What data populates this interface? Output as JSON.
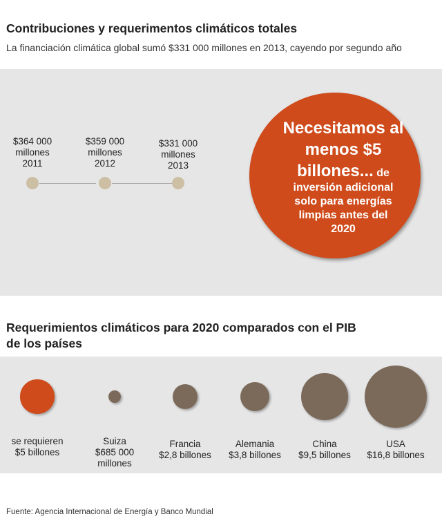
{
  "header": {
    "title": "Contribuciones y requerimentos climáticos totales",
    "subtitle": "La financiación climática global sumó $331 000 millones en 2013, cayendo por segundo año"
  },
  "timeline": [
    {
      "amount": "$364 000",
      "unit": "millones",
      "year": "2011",
      "value_billion_usd": 364
    },
    {
      "amount": "$359 000",
      "unit": "millones",
      "year": "2012",
      "value_billion_usd": 359
    },
    {
      "amount": "$331 000",
      "unit": "millones",
      "year": "2013",
      "value_billion_usd": 331
    }
  ],
  "callout": {
    "head_line1": "Necesitamos al",
    "head_line2": "menos $5",
    "head_line3": "billones...",
    "head_small": " de",
    "body_line1": "inversión adicional",
    "body_line2": "solo para energías",
    "body_line3": "limpias antes del",
    "body_line4": "2020"
  },
  "section2": {
    "title_line1": "Requerimientos climáticos para 2020 comparados con el PIB",
    "title_line2": "de los países"
  },
  "colors": {
    "requirement": "#cf4b1b",
    "gdp": "#7b6a5a",
    "timeline_dot": "#cdbfa4",
    "panel_bg": "#e6e6e6"
  },
  "chart_data": {
    "type": "bubble",
    "unit": "billones USD",
    "items": [
      {
        "name": "se requieren",
        "label_lines": [
          "se requieren",
          "$5 billones"
        ],
        "value": 5,
        "color": "#cf4b1b"
      },
      {
        "name": "Suiza",
        "label_lines": [
          "Suiza",
          "$685 000",
          "millones"
        ],
        "value": 0.685,
        "color": "#7b6a5a"
      },
      {
        "name": "Francia",
        "label_lines": [
          "Francia",
          "$2,8 billones"
        ],
        "value": 2.8,
        "color": "#7b6a5a"
      },
      {
        "name": "Alemania",
        "label_lines": [
          "Alemania",
          "$3,8 billones"
        ],
        "value": 3.8,
        "color": "#7b6a5a"
      },
      {
        "name": "China",
        "label_lines": [
          "China",
          "$9,5 billones"
        ],
        "value": 9.5,
        "color": "#7b6a5a"
      },
      {
        "name": "USA",
        "label_lines": [
          "USA",
          "$16,8 billones"
        ],
        "value": 16.8,
        "color": "#7b6a5a"
      }
    ]
  },
  "footer": {
    "source": "Fuente: Agencia Internacional de Energía y Banco Mundial"
  }
}
